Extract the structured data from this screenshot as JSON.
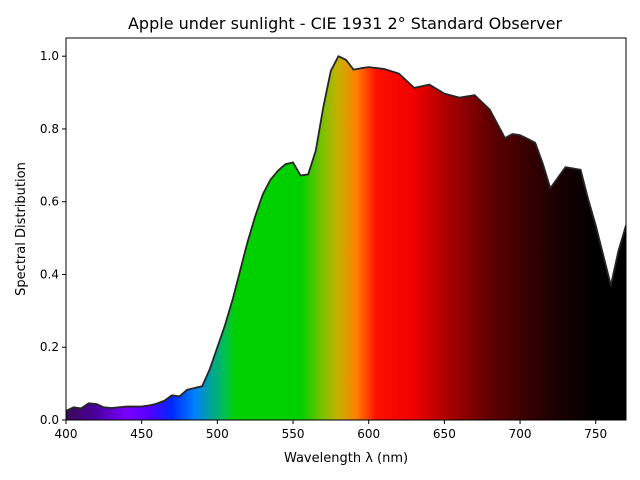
{
  "chart_data": {
    "type": "area",
    "title": "Apple under sunlight - CIE 1931 2° Standard Observer",
    "xlabel": "Wavelength λ (nm)",
    "ylabel": "Spectral Distribution",
    "xlim": [
      400,
      770
    ],
    "ylim": [
      0,
      1.05
    ],
    "xticks": [
      400,
      450,
      500,
      550,
      600,
      650,
      700,
      750
    ],
    "xtick_labels": [
      "400",
      "450",
      "500",
      "550",
      "600",
      "650",
      "700",
      "750"
    ],
    "yticks": [
      0.0,
      0.2,
      0.4,
      0.6,
      0.8,
      1.0
    ],
    "ytick_labels": [
      "0.0",
      "0.2",
      "0.4",
      "0.6",
      "0.8",
      "1.0"
    ],
    "grid": false,
    "legend": false,
    "fill": "visible-spectrum colour gradient",
    "line_color": "#262626",
    "series": [
      {
        "x": [
          400,
          405,
          410,
          415,
          420,
          425,
          430,
          435,
          440,
          445,
          450,
          455,
          460,
          465,
          470,
          475,
          480,
          485,
          490,
          495,
          500,
          505,
          510,
          515,
          520,
          525,
          530,
          535,
          540,
          545,
          550,
          555,
          560,
          565,
          570,
          575,
          580,
          585,
          590,
          595,
          600,
          610,
          620,
          630,
          640,
          650,
          660,
          670,
          680,
          690,
          695,
          700,
          705,
          710,
          715,
          720,
          730,
          740,
          745,
          750,
          760,
          765,
          770
        ],
        "values": [
          0.025,
          0.035,
          0.032,
          0.046,
          0.044,
          0.035,
          0.033,
          0.035,
          0.037,
          0.037,
          0.037,
          0.04,
          0.045,
          0.053,
          0.068,
          0.065,
          0.083,
          0.088,
          0.093,
          0.14,
          0.2,
          0.26,
          0.33,
          0.41,
          0.49,
          0.56,
          0.62,
          0.66,
          0.685,
          0.703,
          0.708,
          0.672,
          0.675,
          0.74,
          0.86,
          0.96,
          1.0,
          0.99,
          0.963,
          0.967,
          0.97,
          0.965,
          0.952,
          0.913,
          0.922,
          0.897,
          0.886,
          0.893,
          0.853,
          0.775,
          0.786,
          0.783,
          0.773,
          0.762,
          0.705,
          0.637,
          0.695,
          0.688,
          0.607,
          0.535,
          0.37,
          0.465,
          0.535
        ]
      }
    ]
  }
}
